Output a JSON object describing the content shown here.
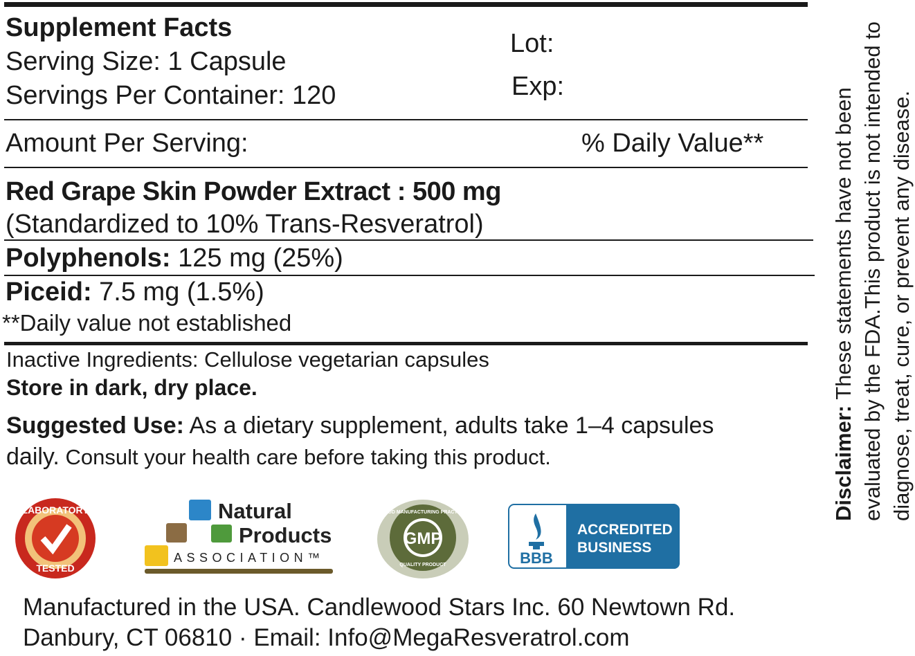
{
  "facts": {
    "title": "Supplement Facts",
    "serving_size": "Serving Size: 1 Capsule",
    "servings_per_container": "Servings Per Container: 120",
    "lot_label": "Lot:",
    "exp_label": "Exp:",
    "amount_header": "Amount Per Serving:",
    "dv_header": "% Daily Value**",
    "ingredient_name": "Red Grape Skin Powder Extract : 500 mg",
    "ingredient_note": "(Standardized to 10% Trans-Resveratrol)",
    "rows": [
      {
        "label": "Polyphenols:",
        "value": " 125 mg (25%)"
      },
      {
        "label": "Piceid:",
        "value": " 7.5 mg (1.5%)"
      }
    ],
    "footnote": "**Daily value not established"
  },
  "inactive": "Inactive Ingredients: Cellulose vegetarian capsules",
  "storage": "Store in dark, dry place.",
  "suggested_use": {
    "label": "Suggested Use:",
    "text1": " As a dietary supplement, adults take 1–4 capsules",
    "text2a": "daily.",
    "text2b": " Consult your health care before taking this product."
  },
  "logos": {
    "lab": {
      "top": "LABORATORY",
      "bottom": "TESTED",
      "color": "#c8281e"
    },
    "npa": {
      "line1": "Natural",
      "line2": "Products",
      "line3": "ASSOCIATION™"
    },
    "gmp": {
      "center": "GMP",
      "top": "GOOD MANUFACTURING PRACTICE",
      "bottom": "QUALITY PRODUCT",
      "color": "#5d6b3a"
    },
    "bbb": {
      "mark": "BBB",
      "line1": "ACCREDITED",
      "line2": "BUSINESS",
      "color": "#1f6fa3"
    }
  },
  "footer": {
    "line1": "Manufactured in the USA. Candlewood Stars Inc.  60 Newtown Rd.",
    "line2": "Danbury, CT 06810 · Email: Info@MegaResveratrol.com"
  },
  "disclaimer": {
    "label": "Disclaimer:",
    "text": " These statements have not been evaluated by the FDA.This product is not intended to diagnose, treat, cure, or prevent any disease."
  }
}
